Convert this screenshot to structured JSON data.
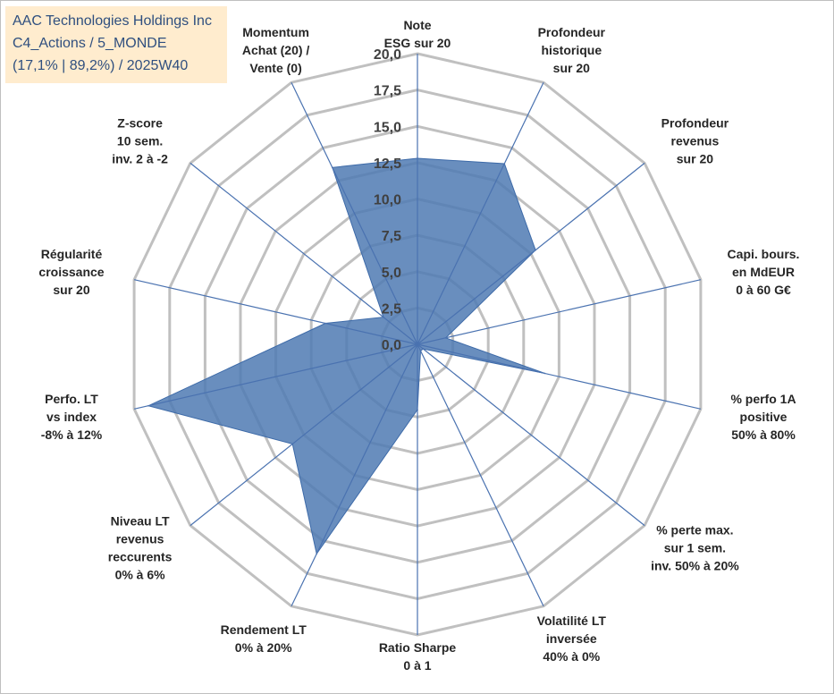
{
  "info": {
    "company": "AAC Technologies Holdings Inc",
    "portfolio": "C4_Actions / 5_MONDE",
    "stats": "(17,1% | 89,2%) / 2025W40"
  },
  "chart_data": {
    "type": "radar",
    "title": "",
    "rmin": 0,
    "rmax": 20,
    "tick_values": [
      0,
      2.5,
      5,
      7.5,
      10,
      12.5,
      15,
      17.5,
      20
    ],
    "tick_labels": [
      "0,0",
      "2,5",
      "5,0",
      "7,5",
      "10,0",
      "12,5",
      "15,0",
      "17,5",
      "20,0"
    ],
    "axes": [
      {
        "lines": [
          "Note",
          "ESG sur 20"
        ]
      },
      {
        "lines": [
          "Profondeur",
          "historique",
          "sur 20"
        ]
      },
      {
        "lines": [
          "Profondeur",
          "revenus",
          "sur 20"
        ]
      },
      {
        "lines": [
          "Capi. bours.",
          "en MdEUR",
          "0 à 60 G€"
        ]
      },
      {
        "lines": [
          "% perfo 1A",
          "positive",
          "50% à 80%"
        ]
      },
      {
        "lines": [
          "% perte max.",
          "sur 1 sem.",
          "inv. 50% à 20%"
        ]
      },
      {
        "lines": [
          "Volatilité LT",
          "inversée",
          "40% à 0%"
        ]
      },
      {
        "lines": [
          "Ratio Sharpe",
          "0 à 1"
        ]
      },
      {
        "lines": [
          "Rendement LT",
          "0% à 20%"
        ]
      },
      {
        "lines": [
          "Niveau LT",
          "revenus",
          "reccurents",
          "0% à 6%"
        ]
      },
      {
        "lines": [
          "Perfo. LT",
          "vs index",
          "-8% à 12%"
        ]
      },
      {
        "lines": [
          "Régularité",
          "croissance",
          "sur 20"
        ]
      },
      {
        "lines": [
          "Z-score",
          "10 sem.",
          "inv. 2 à -2"
        ]
      },
      {
        "lines": [
          "Momentum",
          "Achat (20) /",
          "Vente (0)"
        ]
      }
    ],
    "series": [
      {
        "name": "AAC Technologies Holdings Inc",
        "values": [
          12.8,
          13.8,
          10.4,
          2.0,
          9.0,
          0.5,
          0.5,
          4.5,
          16.0,
          11.0,
          19.0,
          6.5,
          3.0,
          13.5
        ]
      }
    ],
    "colors": {
      "fill": "#4f7ab3",
      "stroke": "#3d6aa8",
      "grid": "#c0c0c0",
      "spoke": "#4a72b0"
    }
  }
}
